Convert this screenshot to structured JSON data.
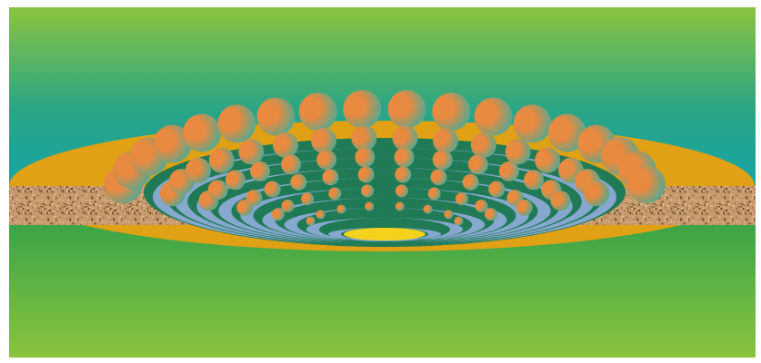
{
  "scene": {
    "description_visible_text": "",
    "colors": {
      "frame_border": "#ffffff",
      "sky_top": "#8ac43f",
      "sky_mid": "#2aa585",
      "sky_bottom": "#16a3a8",
      "ground_top": "#3aa447",
      "ground_bottom": "#8ac43f",
      "berm": "#e0a114",
      "soil_base": "#c79a6d",
      "soil_speck_dark": "#6e4a2c",
      "soil_speck_light": "#e8c59d",
      "terrace_dark": "#1f7a55",
      "terrace_light": "#86a8cf",
      "sphere_light": "#e88a40",
      "sphere_dark": "#3aaea0",
      "floor_pool": "#f5d31c"
    },
    "terrace_count": 10,
    "sphere_rows": [
      18,
      16,
      14,
      12,
      10,
      8
    ]
  }
}
